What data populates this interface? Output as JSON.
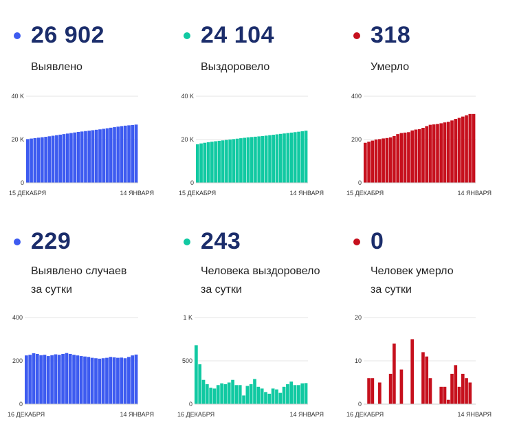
{
  "colors": {
    "blue": "#3d5bf0",
    "green": "#11c9a2",
    "red": "#c6101d",
    "number": "#1b2d6b"
  },
  "panels": [
    {
      "id": "detected-total",
      "value": "26 902",
      "label1": "Выявлено",
      "label2": "",
      "color": "blue",
      "chart_data": {
        "type": "bar",
        "yticks": [
          "0",
          "20 K",
          "40 K"
        ],
        "ylim": [
          0,
          40000
        ],
        "xlabel_start": "15 ДЕКАБРЯ",
        "xlabel_end": "14 ЯНВАРЯ",
        "values": [
          20200,
          20450,
          20650,
          20850,
          21050,
          21250,
          21500,
          21750,
          22000,
          22250,
          22500,
          22750,
          23000,
          23250,
          23500,
          23700,
          23900,
          24100,
          24300,
          24500,
          24700,
          24950,
          25200,
          25450,
          25700,
          25950,
          26200,
          26400,
          26550,
          26700,
          26902
        ]
      }
    },
    {
      "id": "recovered-total",
      "value": "24 104",
      "label1": "Выздоровело",
      "label2": "",
      "color": "green",
      "chart_data": {
        "type": "bar",
        "yticks": [
          "0",
          "20 K",
          "40 K"
        ],
        "ylim": [
          0,
          40000
        ],
        "xlabel_start": "15 ДЕКАБРЯ",
        "xlabel_end": "14 ЯНВАРЯ",
        "values": [
          17800,
          18200,
          18500,
          18750,
          19000,
          19200,
          19400,
          19600,
          19800,
          20000,
          20200,
          20400,
          20600,
          20800,
          21000,
          21150,
          21300,
          21450,
          21600,
          21800,
          22000,
          22200,
          22400,
          22600,
          22800,
          23000,
          23200,
          23400,
          23600,
          23850,
          24104
        ]
      }
    },
    {
      "id": "deaths-total",
      "value": "318",
      "label1": "Умерло",
      "label2": "",
      "color": "red",
      "chart_data": {
        "type": "bar",
        "yticks": [
          "0",
          "200",
          "400"
        ],
        "ylim": [
          0,
          400
        ],
        "xlabel_start": "15 ДЕКАБРЯ",
        "xlabel_end": "14 ЯНВАРЯ",
        "values": [
          185,
          190,
          195,
          200,
          202,
          205,
          207,
          210,
          216,
          225,
          230,
          232,
          234,
          242,
          246,
          248,
          254,
          262,
          268,
          270,
          272,
          275,
          279,
          282,
          288,
          295,
          300,
          306,
          312,
          318,
          318
        ]
      }
    },
    {
      "id": "detected-daily",
      "value": "229",
      "label1": "Выявлено случаев",
      "label2": "за сутки",
      "color": "blue",
      "chart_data": {
        "type": "bar",
        "yticks": [
          "0",
          "200",
          "400"
        ],
        "ylim": [
          0,
          400
        ],
        "xlabel_start": "16 ДЕКАБРЯ",
        "xlabel_end": "14 ЯНВАРЯ",
        "values": [
          225,
          228,
          235,
          232,
          226,
          228,
          222,
          226,
          230,
          228,
          232,
          236,
          232,
          228,
          225,
          222,
          220,
          218,
          214,
          212,
          210,
          212,
          214,
          218,
          216,
          214,
          215,
          212,
          218,
          225,
          229
        ]
      }
    },
    {
      "id": "recovered-daily",
      "value": "243",
      "label1": "Человека выздоровело",
      "label2": "за сутки",
      "color": "green",
      "chart_data": {
        "type": "bar",
        "yticks": [
          "0",
          "500",
          "1 K"
        ],
        "ylim": [
          0,
          1000
        ],
        "xlabel_start": "16 ДЕКАБРЯ",
        "xlabel_end": "14 ЯНВАРЯ",
        "values": [
          680,
          460,
          280,
          230,
          190,
          180,
          220,
          240,
          230,
          250,
          280,
          220,
          220,
          100,
          210,
          230,
          290,
          200,
          180,
          140,
          120,
          180,
          170,
          130,
          200,
          230,
          260,
          220,
          220,
          240,
          243
        ]
      }
    },
    {
      "id": "deaths-daily",
      "value": "0",
      "label1": "Человек умерло",
      "label2": "за сутки",
      "color": "red",
      "chart_data": {
        "type": "bar",
        "yticks": [
          "0",
          "10",
          "20"
        ],
        "ylim": [
          0,
          20
        ],
        "xlabel_start": "16 ДЕКАБРЯ",
        "xlabel_end": "14 ЯНВАРЯ",
        "values": [
          0,
          6,
          6,
          0,
          5,
          0,
          0,
          7,
          14,
          0,
          8,
          0,
          0,
          15,
          0,
          0,
          12,
          11,
          6,
          0,
          0,
          4,
          4,
          1,
          7,
          9,
          4,
          7,
          6,
          5,
          0
        ]
      }
    }
  ]
}
